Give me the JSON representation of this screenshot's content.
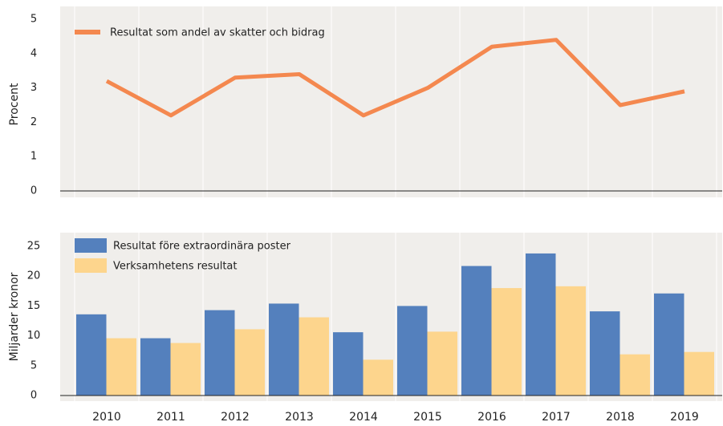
{
  "chart_data": [
    {
      "type": "line",
      "ylabel": "Procent",
      "series": [
        {
          "name": "Resultat som andel av skatter och bidrag",
          "color": "#f4884f",
          "values": [
            3.2,
            2.2,
            3.3,
            3.4,
            2.2,
            3.0,
            4.2,
            4.4,
            2.5,
            2.9
          ]
        }
      ],
      "ylim": [
        0,
        5
      ],
      "yticks": [
        0,
        1,
        2,
        3,
        4,
        5
      ]
    },
    {
      "type": "bar",
      "ylabel": "Miljarder kronor",
      "categories": [
        "2010",
        "2011",
        "2012",
        "2013",
        "2014",
        "2015",
        "2016",
        "2017",
        "2018",
        "2019"
      ],
      "series": [
        {
          "name": "Resultat före extraordinära poster",
          "color": "#5480bd",
          "values": [
            13.6,
            9.6,
            14.3,
            15.4,
            10.6,
            15.0,
            21.7,
            23.8,
            14.1,
            17.1
          ]
        },
        {
          "name": "Verksamhetens resultat",
          "color": "#fdd58d",
          "values": [
            9.6,
            8.8,
            11.1,
            13.1,
            6.0,
            10.7,
            18.0,
            18.3,
            6.9,
            7.3
          ]
        }
      ],
      "ylim": [
        0,
        25
      ],
      "yticks": [
        0,
        5,
        10,
        15,
        20,
        25
      ]
    }
  ]
}
